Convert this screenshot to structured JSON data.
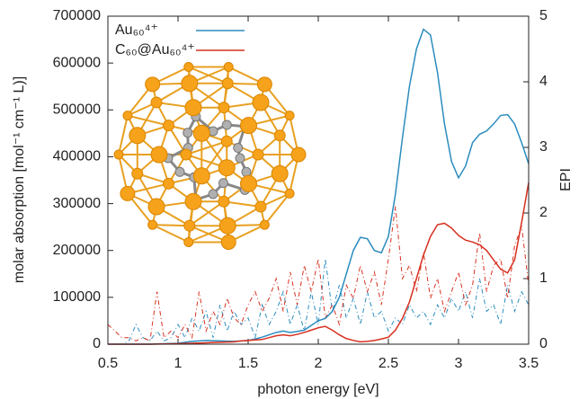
{
  "chart_data": {
    "type": "line",
    "xlabel": "photon energy [eV]",
    "ylabel": "molar absorption [mol⁻¹ cm⁻¹ L)]",
    "y2label": "EPI",
    "x": [
      0.5,
      0.55,
      0.6,
      0.65,
      0.7,
      0.75,
      0.8,
      0.85,
      0.9,
      0.95,
      1.0,
      1.05,
      1.1,
      1.15,
      1.2,
      1.25,
      1.3,
      1.35,
      1.4,
      1.45,
      1.5,
      1.55,
      1.6,
      1.65,
      1.7,
      1.75,
      1.8,
      1.85,
      1.9,
      1.95,
      2.0,
      2.05,
      2.1,
      2.15,
      2.2,
      2.25,
      2.3,
      2.35,
      2.4,
      2.45,
      2.5,
      2.55,
      2.6,
      2.65,
      2.7,
      2.75,
      2.8,
      2.85,
      2.9,
      2.95,
      3.0,
      3.05,
      3.1,
      3.15,
      3.2,
      3.25,
      3.3,
      3.35,
      3.4,
      3.45,
      3.5
    ],
    "series": [
      {
        "name": "Au₆₀⁴⁺",
        "color": "#2b8cbe",
        "style": "solid",
        "values": [
          0,
          0,
          0,
          0,
          0,
          0,
          0,
          500,
          1000,
          1500,
          2000,
          4000,
          6000,
          7000,
          8000,
          7500,
          7000,
          6500,
          6000,
          7000,
          8000,
          11000,
          15000,
          20000,
          25000,
          28000,
          25000,
          27000,
          30000,
          40000,
          50000,
          55000,
          70000,
          100000,
          150000,
          200000,
          228000,
          225000,
          200000,
          195000,
          230000,
          320000,
          440000,
          550000,
          630000,
          672000,
          660000,
          580000,
          470000,
          390000,
          355000,
          380000,
          430000,
          448000,
          455000,
          470000,
          488000,
          490000,
          470000,
          430000,
          385000
        ]
      },
      {
        "name": "C₆₀@Au₆₀⁴⁺",
        "color": "#d7301f",
        "style": "solid",
        "values": [
          0,
          0,
          0,
          0,
          0,
          0,
          0,
          200,
          500,
          800,
          1000,
          1500,
          2000,
          2500,
          3000,
          3500,
          4000,
          4500,
          5000,
          7000,
          8000,
          9000,
          10000,
          14000,
          18000,
          20000,
          18000,
          21000,
          25000,
          30000,
          35000,
          38000,
          30000,
          20000,
          12000,
          8000,
          5000,
          6000,
          8000,
          11000,
          15000,
          30000,
          55000,
          90000,
          140000,
          190000,
          230000,
          255000,
          258000,
          248000,
          232000,
          222000,
          218000,
          212000,
          200000,
          180000,
          160000,
          152000,
          180000,
          260000,
          345000
        ]
      },
      {
        "color": "#2b8cbe",
        "style": "dashed",
        "axis": "y2",
        "values": [
          0,
          0,
          0,
          0.05,
          0.3,
          0.1,
          0.05,
          0.2,
          0.05,
          0.1,
          0.3,
          0.1,
          0.4,
          0.2,
          0.5,
          0.1,
          0.6,
          0.2,
          0.5,
          0.3,
          0.4,
          0.1,
          0.6,
          0.3,
          0.5,
          0.8,
          0.3,
          0.6,
          0.2,
          0.8,
          0.3,
          1.3,
          0.5,
          0.9,
          0.4,
          0.7,
          0.3,
          0.8,
          0.4,
          0.5,
          0.2,
          0.4,
          0.3,
          0.6,
          0.4,
          0.5,
          0.3,
          0.6,
          0.4,
          0.7,
          0.5,
          0.8,
          0.4,
          1.0,
          0.5,
          0.6,
          0.3,
          0.9,
          0.5,
          0.8,
          0.6
        ]
      },
      {
        "color": "#d7301f",
        "style": "dashed",
        "axis": "y2",
        "values": [
          0.3,
          0.2,
          0.1,
          0.1,
          0.05,
          0.1,
          0.05,
          0.8,
          0.1,
          0.2,
          0.1,
          0.3,
          0.1,
          0.8,
          0.2,
          0.5,
          0.3,
          0.7,
          0.4,
          0.3,
          0.6,
          0.8,
          0.5,
          0.7,
          1.0,
          0.5,
          1.1,
          0.6,
          1.2,
          0.8,
          1.3,
          0.4,
          0.6,
          0.3,
          0.9,
          0.7,
          1.2,
          0.8,
          1.1,
          0.6,
          1.3,
          2.1,
          1.0,
          1.2,
          0.8,
          1.4,
          0.7,
          1.0,
          0.5,
          0.8,
          1.1,
          0.6,
          0.9,
          1.7,
          0.8,
          1.2,
          1.3,
          0.7,
          1.5,
          1.8,
          0.9
        ]
      }
    ],
    "xlim": [
      0.5,
      3.5
    ],
    "xticks": [
      0.5,
      1,
      1.5,
      2,
      2.5,
      3,
      3.5
    ],
    "ylim": [
      0,
      700000
    ],
    "yticks": [
      0,
      100000,
      200000,
      300000,
      400000,
      500000,
      600000,
      700000
    ],
    "y2lim": [
      0,
      5
    ],
    "y2ticks": [
      0,
      1,
      2,
      3,
      4,
      5
    ],
    "grid": false,
    "legend": "top-left"
  }
}
